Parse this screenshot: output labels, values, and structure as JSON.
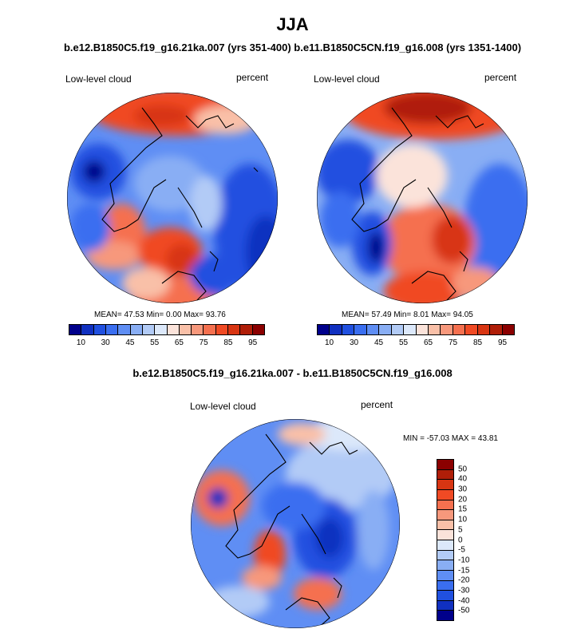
{
  "title": "JJA",
  "subtitle": "b.e12.B1850C5.f19_g16.21ka.007 (yrs 351-400) b.e11.B1850C5CN.f19_g16.008 (yrs 1351-1400)",
  "diff_title": "b.e12.B1850C5.f19_g16.21ka.007 - b.e11.B1850C5CN.f19_g16.008",
  "panels": [
    {
      "left_label": "Low-level cloud",
      "right_label": "percent",
      "stats": "MEAN=  47.53  Min=   0.00  Max=  93.76"
    },
    {
      "left_label": "Low-level cloud",
      "right_label": "percent",
      "stats": "MEAN=  57.49  Min=   8.01  Max=  94.05"
    },
    {
      "left_label": "Low-level cloud",
      "right_label": "percent",
      "stats": "MIN = -57.03 MAX =  43.81"
    }
  ],
  "colorbar_top": {
    "tick_labels": [
      "10",
      "30",
      "45",
      "55",
      "65",
      "75",
      "85",
      "95"
    ],
    "colors": [
      "#00008b",
      "#1030c0",
      "#2050e0",
      "#3a6ef0",
      "#5f8ef4",
      "#89aef4",
      "#b2cbf6",
      "#dce8fa",
      "#fbe3da",
      "#f9c0a8",
      "#f7987c",
      "#f5704f",
      "#f04a24",
      "#d83512",
      "#b01e08",
      "#8b0000"
    ]
  },
  "colorbar_diff": {
    "tick_labels": [
      "50",
      "40",
      "30",
      "20",
      "15",
      "10",
      "5",
      "0",
      "-5",
      "-10",
      "-15",
      "-20",
      "-30",
      "-40",
      "-50"
    ],
    "colors": [
      "#8b0000",
      "#b01e08",
      "#d83512",
      "#f04a24",
      "#f5704f",
      "#f7987c",
      "#f9c0a8",
      "#fbe3da",
      "#dce8fa",
      "#b2cbf6",
      "#89aef4",
      "#5f8ef4",
      "#3a6ef0",
      "#2050e0",
      "#1030c0",
      "#00008b"
    ]
  }
}
